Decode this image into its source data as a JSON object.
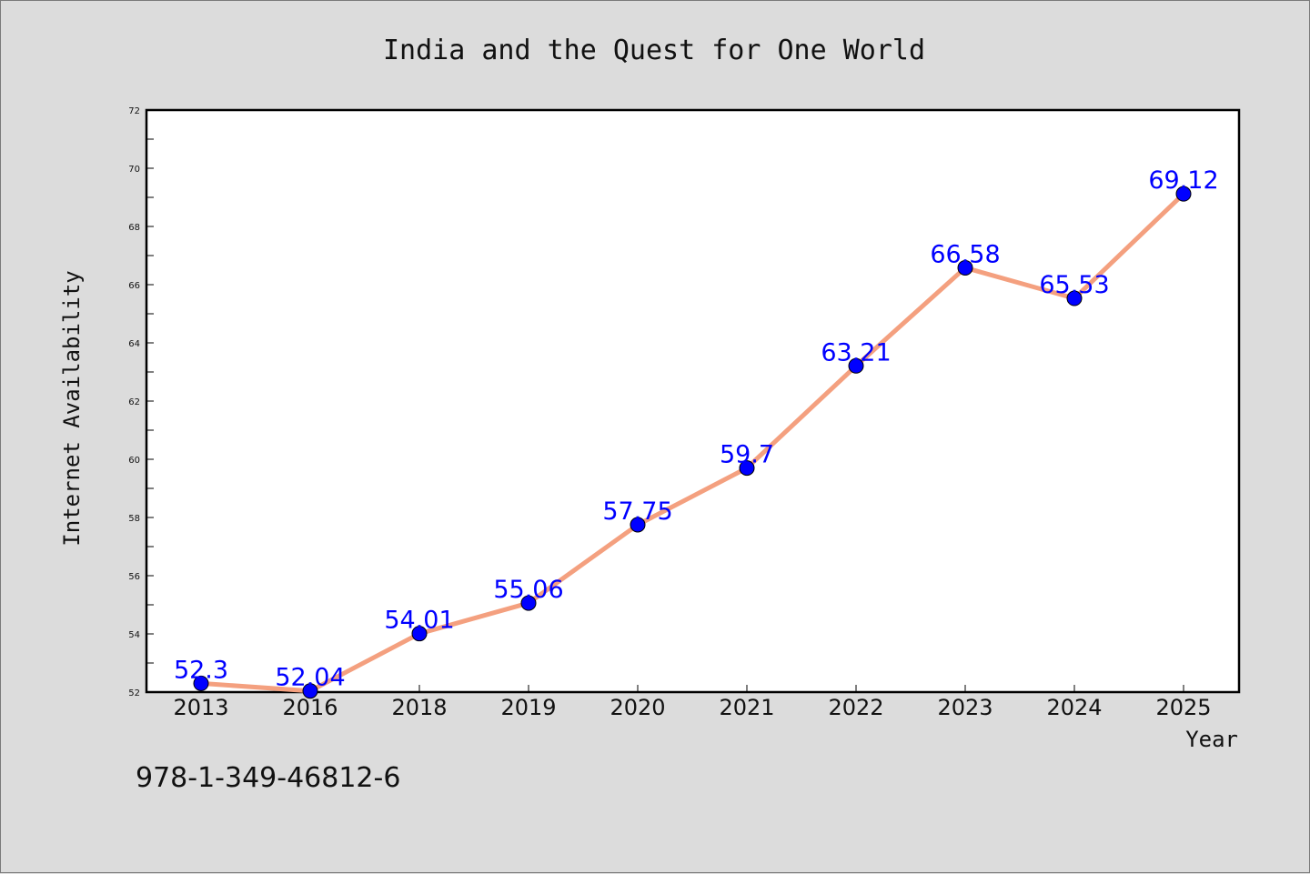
{
  "chart_data": {
    "type": "line",
    "title": "India and the Quest for One World",
    "xlabel": "Year",
    "ylabel": "Internet Availability",
    "categories": [
      "2013",
      "2016",
      "2018",
      "2019",
      "2020",
      "2021",
      "2022",
      "2023",
      "2024",
      "2025"
    ],
    "values": [
      52.3,
      52.04,
      54.01,
      55.06,
      57.75,
      59.7,
      63.21,
      66.58,
      65.53,
      69.12
    ],
    "data_labels": [
      "52.3",
      "52.04",
      "54.01",
      "55.06",
      "57.75",
      "59.7",
      "63.21",
      "66.58",
      "65.53",
      "69.12"
    ],
    "ylim": [
      52,
      72
    ],
    "yticks": [
      "52",
      "54",
      "56",
      "58",
      "60",
      "62",
      "64",
      "66",
      "68",
      "70",
      "72"
    ],
    "grid": false,
    "line_color": "#f4a07f",
    "marker_color": "#0000ff",
    "label_color": "#0000ff",
    "background_color": "#dcdcdc",
    "plot_background": "#ffffff"
  },
  "footer": {
    "isbn": "978-1-349-46812-6"
  }
}
